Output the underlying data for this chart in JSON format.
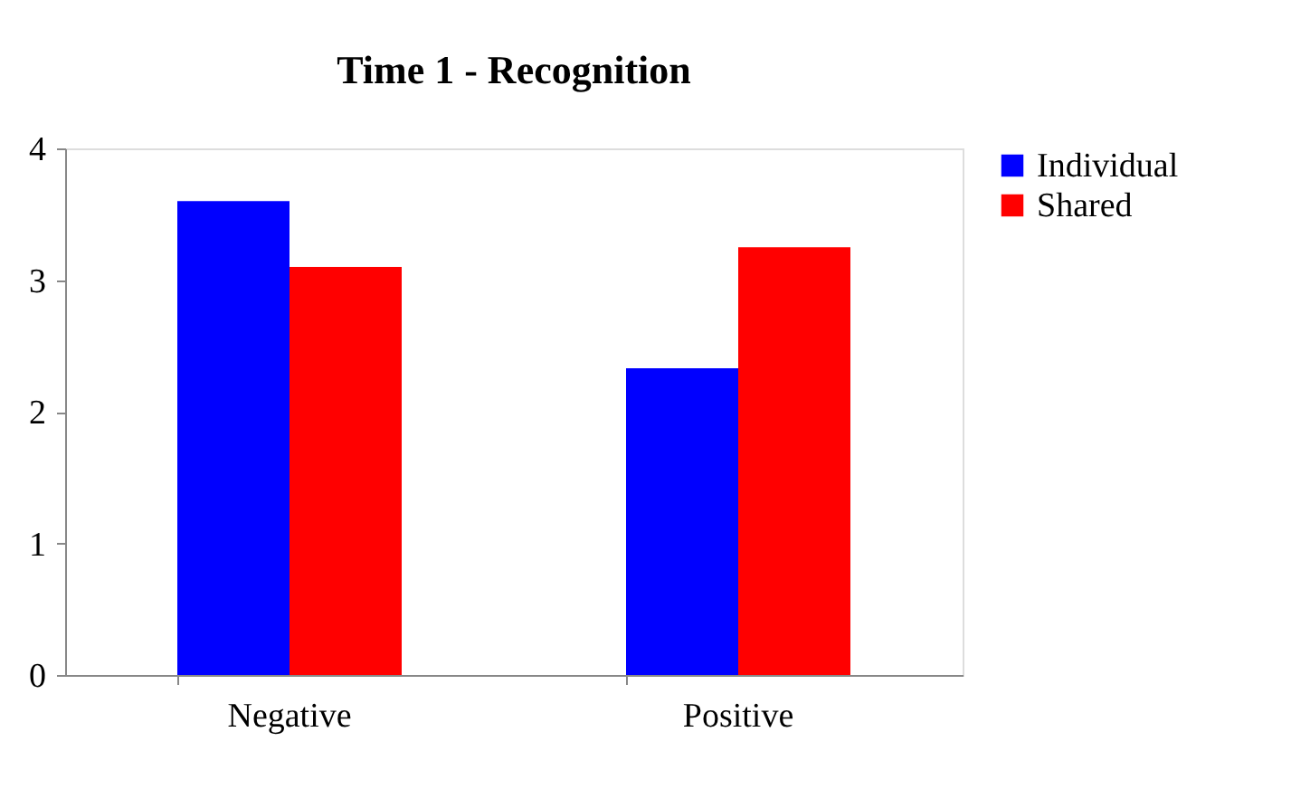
{
  "chart_data": {
    "type": "bar",
    "title": "Time 1 - Recognition",
    "categories": [
      "Negative",
      "Positive"
    ],
    "series": [
      {
        "name": "Individual",
        "color": "#0000ff",
        "values": [
          3.6,
          2.33
        ]
      },
      {
        "name": "Shared",
        "color": "#ff0000",
        "values": [
          3.1,
          3.25
        ]
      }
    ],
    "ylim": [
      0,
      4
    ],
    "yticks": [
      0,
      1,
      2,
      3,
      4
    ],
    "grid": false,
    "legend": "right"
  }
}
